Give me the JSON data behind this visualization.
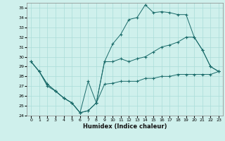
{
  "xlabel": "Humidex (Indice chaleur)",
  "bg_color": "#cff0ec",
  "grid_color": "#aaddd8",
  "line_color": "#1a6b6a",
  "xlim": [
    -0.5,
    23.5
  ],
  "ylim": [
    24,
    35.5
  ],
  "xticks": [
    0,
    1,
    2,
    3,
    4,
    5,
    6,
    7,
    8,
    9,
    10,
    11,
    12,
    13,
    14,
    15,
    16,
    17,
    18,
    19,
    20,
    21,
    22,
    23
  ],
  "yticks": [
    24,
    25,
    26,
    27,
    28,
    29,
    30,
    31,
    32,
    33,
    34,
    35
  ],
  "line1_x": [
    0,
    1,
    2,
    3,
    4,
    5,
    6,
    7,
    8,
    9,
    10,
    11,
    12,
    13,
    14,
    15,
    16,
    17,
    18,
    19,
    20,
    21,
    22,
    23
  ],
  "line1_y": [
    29.5,
    28.5,
    27.2,
    26.5,
    25.8,
    25.3,
    24.3,
    27.5,
    25.3,
    29.5,
    31.3,
    32.3,
    33.8,
    34.0,
    35.3,
    34.5,
    34.6,
    34.5,
    34.3,
    34.3,
    32.0,
    30.7,
    29.0,
    28.5
  ],
  "line2_x": [
    0,
    1,
    2,
    3,
    4,
    5,
    6,
    7,
    8,
    9,
    10,
    11,
    12,
    13,
    14,
    15,
    16,
    17,
    18,
    19,
    20,
    21,
    22,
    23
  ],
  "line2_y": [
    29.5,
    28.5,
    27.2,
    26.5,
    25.8,
    25.3,
    24.3,
    24.5,
    25.3,
    29.5,
    29.5,
    29.8,
    29.5,
    29.8,
    30.0,
    30.5,
    31.0,
    31.2,
    31.5,
    32.0,
    32.0,
    30.7,
    29.0,
    28.5
  ],
  "line3_x": [
    0,
    1,
    2,
    3,
    4,
    5,
    6,
    7,
    8,
    9,
    10,
    11,
    12,
    13,
    14,
    15,
    16,
    17,
    18,
    19,
    20,
    21,
    22,
    23
  ],
  "line3_y": [
    29.5,
    28.5,
    27.0,
    26.5,
    25.8,
    25.3,
    24.3,
    24.5,
    25.3,
    27.2,
    27.3,
    27.5,
    27.5,
    27.5,
    27.8,
    27.8,
    28.0,
    28.0,
    28.2,
    28.2,
    28.2,
    28.2,
    28.2,
    28.5
  ]
}
